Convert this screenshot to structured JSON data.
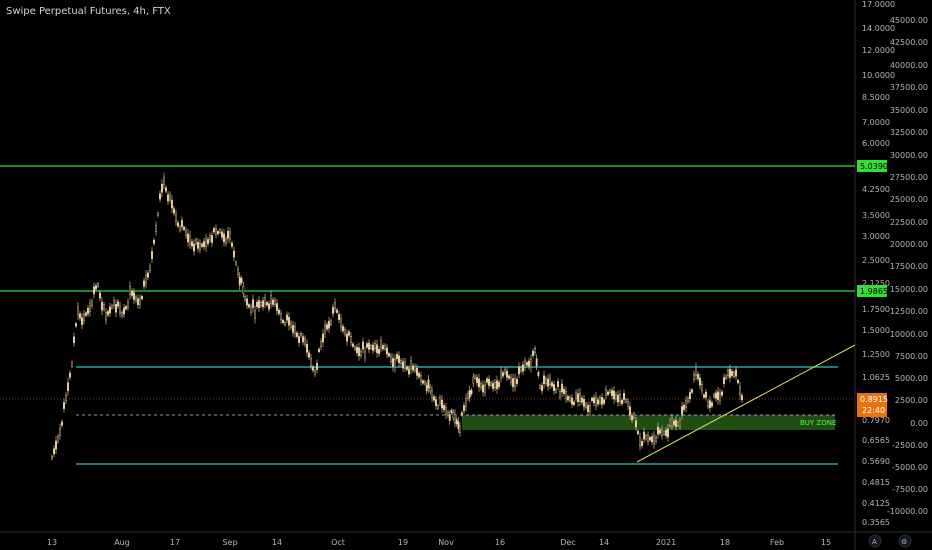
{
  "header": {
    "title": "Swipe Perpetual Futures, 4h, FTX"
  },
  "colors": {
    "background": "#000000",
    "candle": "#f3d6a6",
    "resistance": "#33e033",
    "channel": "#2ec4c4",
    "trendline": "#d6d66a",
    "buy_zone": "#1f4d14",
    "price_badge": "#e8720c",
    "dotted": "#cccccc"
  },
  "left_axis": {
    "labels": [
      "17.0000",
      "14.0000",
      "12.0000",
      "10.0000",
      "8.5000",
      "7.0000",
      "6.0000",
      "4.2500",
      "3.5000",
      "3.0000",
      "2.5000",
      "2.1250",
      "1.7500",
      "1.5000",
      "1.2500",
      "1.0625",
      "0.7970",
      "0.6565",
      "0.5690",
      "0.4815",
      "0.4125",
      "0.3565"
    ]
  },
  "right_axis": {
    "labels": [
      "45000.00",
      "42500.00",
      "40000.00",
      "37500.00",
      "35000.00",
      "32500.00",
      "30000.00",
      "27500.00",
      "25000.00",
      "22500.00",
      "20000.00",
      "17500.00",
      "15000.00",
      "12500.00",
      "10000.00",
      "7500.00",
      "5000.00",
      "2500.00",
      "0.00",
      "-2500.00",
      "-5000.00",
      "-7500.00",
      "-10000.00"
    ]
  },
  "x_axis": {
    "labels": [
      "13",
      "Aug",
      "17",
      "Sep",
      "14",
      "Oct",
      "19",
      "Nov",
      "16",
      "Dec",
      "14",
      "2021",
      "18",
      "Feb",
      "15"
    ]
  },
  "badges": {
    "upper_resistance": "5.0390",
    "lower_resistance": "1.9865",
    "last_price": "0.8915",
    "countdown": "22:40"
  },
  "annotations": {
    "buy_zone": "BUY ZONE"
  },
  "footer_buttons": {
    "auto": "A",
    "settings": "⚙"
  },
  "chart_data": {
    "type": "candlestick",
    "title": "Swipe Perpetual Futures, 4h, FTX",
    "scale": "log",
    "x": [
      "13",
      "Aug",
      "17",
      "Sep",
      "14",
      "Oct",
      "19",
      "Nov",
      "16",
      "Dec",
      "14",
      "2021",
      "18"
    ],
    "close": [
      0.56,
      1.55,
      4.6,
      2.4,
      1.65,
      1.3,
      1.0,
      0.78,
      1.1,
      0.93,
      0.6,
      1.15,
      0.89
    ],
    "horizontal_levels": [
      5.039,
      1.9865,
      1.1,
      0.58
    ],
    "buy_zone": [
      0.68,
      0.8
    ],
    "last_price": 0.8915,
    "grid": false
  }
}
